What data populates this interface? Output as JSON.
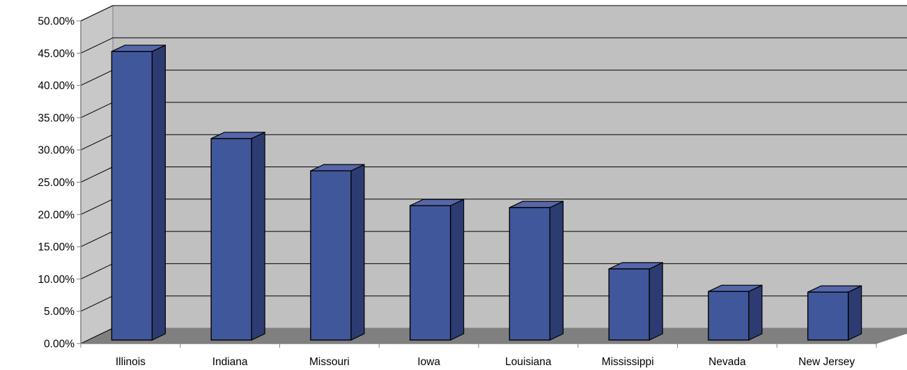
{
  "chart_data": {
    "type": "bar",
    "title": "",
    "xlabel": "",
    "ylabel": "",
    "categories": [
      "Illinois",
      "Indiana",
      "Missouri",
      "Iowa",
      "Louisiana",
      "Mississippi",
      "Nevada",
      "New Jersey"
    ],
    "values": [
      45.7,
      32.2,
      27.2,
      21.8,
      21.5,
      12.0,
      8.5,
      8.4
    ],
    "ylim": [
      0,
      50
    ],
    "yticks": [
      "0.00%",
      "5.00%",
      "10.00%",
      "15.00%",
      "20.00%",
      "25.00%",
      "30.00%",
      "35.00%",
      "40.00%",
      "45.00%",
      "50.00%"
    ],
    "y_step": 5,
    "grid": true,
    "legend": "none",
    "colors": {
      "bar_front": "#41579b",
      "bar_side": "#2c3c72",
      "bar_top": "#5567a9",
      "back_wall": "#c0c0c0",
      "side_wall": "#c8c8c8",
      "floor": "#808080"
    }
  }
}
